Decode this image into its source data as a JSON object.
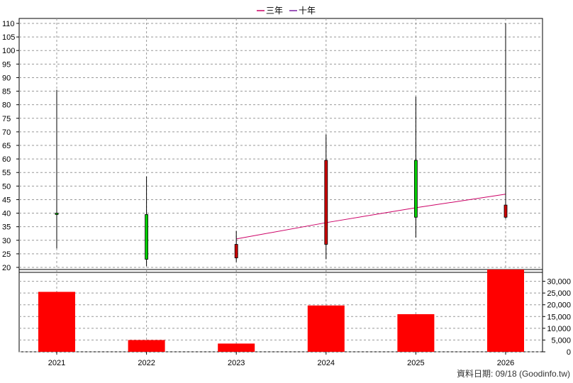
{
  "chart_data": {
    "type": "candlestick+bar",
    "legend": [
      {
        "name": "三年",
        "color": "#cc0066"
      },
      {
        "name": "十年",
        "color": "#7a1fa2"
      }
    ],
    "categories": [
      "2021",
      "2022",
      "2023",
      "2024",
      "2025",
      "2026"
    ],
    "price": {
      "ylim": [
        20,
        110
      ],
      "ticks": [
        20,
        25,
        30,
        35,
        40,
        45,
        50,
        55,
        60,
        65,
        70,
        75,
        80,
        85,
        90,
        95,
        100,
        105,
        110
      ],
      "candles": [
        {
          "year": "2021",
          "open": 40.0,
          "close": 39.5,
          "high": 85.5,
          "low": 27.0,
          "color": "#00cc00"
        },
        {
          "year": "2022",
          "open": 39.5,
          "close": 23.0,
          "high": 53.5,
          "low": 20.5,
          "color": "#00cc00"
        },
        {
          "year": "2023",
          "open": 23.5,
          "close": 28.5,
          "high": 33.5,
          "low": 22.0,
          "color": "#cc0000"
        },
        {
          "year": "2024",
          "open": 28.5,
          "close": 59.5,
          "high": 69.0,
          "low": 23.0,
          "color": "#cc0000"
        },
        {
          "year": "2025",
          "open": 59.5,
          "close": 38.5,
          "high": 83.0,
          "low": 31.0,
          "color": "#00cc00"
        },
        {
          "year": "2026",
          "open": 38.5,
          "close": 43.0,
          "high": 110.0,
          "low": 38.0,
          "color": "#cc0000"
        }
      ],
      "ma_three_year": {
        "name": "三年",
        "x": [
          "2023",
          "2024",
          "2025",
          "2026"
        ],
        "values": [
          30.5,
          36.5,
          42.0,
          47.0
        ]
      }
    },
    "volume": {
      "ylim": [
        0,
        35000
      ],
      "ticks": [
        0,
        5000,
        10000,
        15000,
        20000,
        25000,
        30000
      ],
      "tick_labels": [
        "0",
        "5,000",
        "10,000",
        "15,000",
        "20,000",
        "25,000",
        "30,000"
      ],
      "values": [
        25500,
        5000,
        3500,
        19700,
        16000,
        35000
      ],
      "color": "#ff0000"
    },
    "grid": true
  },
  "footer": {
    "source": "資料日期: 09/18  (Goodinfo.tw)"
  }
}
